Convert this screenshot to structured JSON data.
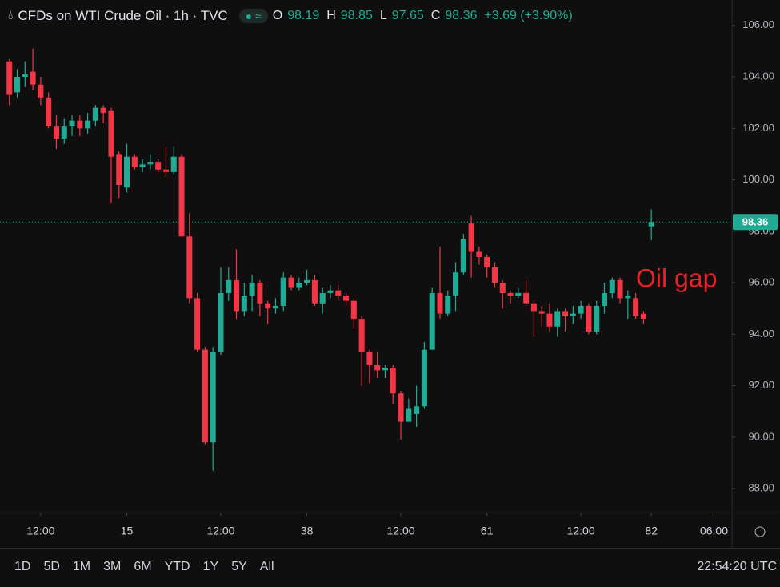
{
  "chart_data": {
    "type": "candlestick",
    "title": "CFDs on WTI Crude Oil · 1h · TVC",
    "ohlc": [
      {
        "label": "O",
        "value": 98.19
      },
      {
        "label": "H",
        "value": 98.85
      },
      {
        "label": "L",
        "value": 97.65
      },
      {
        "label": "C",
        "value": 98.36
      }
    ],
    "change": "+3.69 (+3.90%)",
    "annotation": "Oil gap",
    "last_price": 98.36,
    "x": [
      0,
      1,
      2,
      3,
      4,
      5,
      6,
      7,
      8,
      9,
      10,
      11,
      12,
      13,
      14,
      15,
      16,
      17,
      18,
      19,
      20,
      21,
      22,
      23,
      24,
      25,
      26,
      27,
      28,
      29,
      30,
      31,
      32,
      33,
      34,
      35,
      36,
      37,
      38,
      39,
      40,
      41,
      42,
      43,
      44,
      45,
      46,
      47,
      48,
      49,
      50,
      51,
      52,
      53,
      54,
      55,
      56,
      57,
      58,
      59,
      60,
      61,
      62,
      63,
      64,
      65,
      66,
      67,
      68,
      69,
      70,
      71,
      72,
      73,
      74,
      75,
      76,
      77,
      78,
      79,
      80,
      81,
      82
    ],
    "open": [
      104.6,
      103.4,
      104.0,
      104.2,
      103.7,
      103.2,
      102.1,
      101.6,
      102.1,
      102.3,
      102.0,
      102.3,
      102.8,
      102.7,
      101.0,
      99.7,
      100.9,
      100.5,
      100.6,
      100.7,
      100.4,
      100.3,
      100.9,
      97.8,
      95.4,
      93.4,
      89.8,
      93.3,
      95.6,
      96.1,
      94.9,
      95.5,
      96.0,
      95.2,
      95.0,
      95.1,
      96.2,
      95.8,
      96.0,
      96.1,
      95.2,
      95.6,
      95.7,
      95.5,
      95.3,
      94.6,
      93.3,
      92.8,
      92.6,
      92.7,
      91.7,
      90.6,
      90.9,
      91.2,
      93.4,
      95.6,
      94.8,
      95.5,
      96.4,
      98.3,
      97.2,
      97.0,
      96.6,
      96.0,
      95.6,
      95.5,
      95.6,
      95.2,
      94.9,
      94.8,
      94.3,
      94.9,
      94.7,
      94.8,
      95.1,
      94.1,
      95.1,
      95.6,
      96.1,
      95.4,
      95.4,
      94.8,
      98.19
    ],
    "high": [
      104.7,
      104.3,
      104.6,
      105.1,
      104.0,
      103.4,
      102.5,
      102.4,
      102.5,
      102.5,
      102.6,
      102.9,
      102.9,
      102.8,
      101.1,
      101.4,
      101.0,
      100.8,
      101.0,
      100.8,
      101.3,
      101.3,
      101.0,
      98.7,
      95.6,
      93.5,
      93.5,
      96.6,
      96.6,
      97.3,
      96.0,
      96.3,
      96.1,
      95.3,
      95.4,
      96.4,
      96.3,
      96.2,
      96.5,
      96.3,
      95.8,
      95.9,
      95.9,
      95.6,
      95.4,
      94.7,
      93.4,
      93.3,
      92.8,
      92.8,
      91.8,
      91.5,
      92.0,
      93.7,
      95.8,
      97.4,
      95.7,
      96.8,
      97.9,
      98.6,
      97.4,
      97.1,
      96.8,
      96.1,
      95.7,
      95.8,
      96.1,
      95.3,
      95.1,
      95.2,
      95.0,
      95.0,
      95.1,
      95.3,
      95.2,
      95.3,
      96.0,
      96.2,
      96.2,
      95.7,
      95.6,
      94.9,
      98.85
    ],
    "low": [
      102.9,
      103.2,
      103.6,
      103.5,
      102.9,
      102.0,
      101.2,
      101.4,
      101.7,
      101.7,
      101.8,
      102.1,
      102.2,
      99.1,
      99.3,
      99.5,
      100.4,
      100.3,
      100.4,
      100.3,
      100.1,
      100.2,
      97.8,
      95.2,
      93.3,
      89.7,
      88.7,
      93.2,
      95.3,
      94.6,
      94.7,
      94.9,
      94.7,
      94.4,
      94.8,
      94.9,
      95.7,
      95.7,
      95.9,
      95.1,
      94.8,
      95.4,
      95.3,
      95.1,
      94.2,
      92.0,
      92.1,
      92.3,
      92.3,
      91.3,
      89.9,
      90.6,
      90.4,
      91.1,
      93.4,
      94.6,
      94.7,
      94.9,
      96.3,
      96.2,
      96.7,
      96.2,
      95.8,
      95.0,
      95.2,
      95.4,
      95.1,
      93.9,
      94.3,
      94.1,
      93.9,
      94.1,
      94.4,
      94.6,
      94.0,
      94.0,
      94.8,
      95.4,
      95.2,
      94.6,
      94.6,
      94.4,
      97.65
    ],
    "close": [
      103.3,
      104.0,
      104.1,
      103.7,
      103.2,
      102.1,
      101.6,
      102.1,
      102.3,
      102.0,
      102.3,
      102.8,
      102.6,
      100.9,
      99.8,
      100.9,
      100.5,
      100.6,
      100.7,
      100.4,
      100.3,
      100.9,
      97.8,
      95.4,
      93.4,
      89.8,
      93.3,
      95.6,
      96.1,
      94.9,
      95.5,
      96.0,
      95.2,
      95.0,
      95.1,
      96.2,
      95.8,
      96.0,
      96.1,
      95.2,
      95.6,
      95.7,
      95.5,
      95.3,
      94.6,
      93.3,
      92.8,
      92.6,
      92.7,
      91.7,
      90.6,
      91.1,
      91.2,
      93.4,
      95.6,
      94.8,
      95.5,
      96.4,
      97.7,
      97.2,
      97.0,
      96.6,
      96.0,
      95.6,
      95.5,
      95.6,
      95.2,
      94.9,
      94.8,
      94.3,
      94.9,
      94.7,
      94.8,
      95.1,
      94.1,
      95.1,
      95.6,
      96.1,
      95.4,
      95.5,
      94.7,
      94.6,
      98.36
    ],
    "up_color": "#22ab94",
    "down_color": "#f23645",
    "xlim": [
      -1.2,
      92.3
    ],
    "xticks": [
      {
        "value": 4,
        "label": "12:00"
      },
      15,
      {
        "value": 27,
        "label": "12:00"
      },
      38,
      {
        "value": 50,
        "label": "12:00"
      },
      61,
      {
        "value": 73,
        "label": "12:00"
      },
      82,
      {
        "value": 90,
        "label": "06:00"
      }
    ],
    "ylim": [
      87.07,
      106.99
    ],
    "yticks": [
      {
        "value": 106,
        "label": "106.00"
      },
      {
        "value": 104,
        "label": "104.00"
      },
      {
        "value": 102,
        "label": "102.00"
      },
      {
        "value": 100,
        "label": "100.00"
      },
      {
        "value": 98,
        "label": "98.00"
      },
      {
        "value": 96,
        "label": "96.00"
      },
      {
        "value": 94,
        "label": "94.00"
      },
      {
        "value": 92,
        "label": "92.00"
      },
      {
        "value": 90,
        "label": "90.00"
      },
      {
        "value": 88,
        "label": "88.00"
      }
    ],
    "ranges": [
      "1D",
      "5D",
      "1M",
      "3M",
      "6M",
      "YTD",
      "1Y",
      "5Y",
      "All"
    ],
    "clock": "22:54:20 UTC"
  }
}
